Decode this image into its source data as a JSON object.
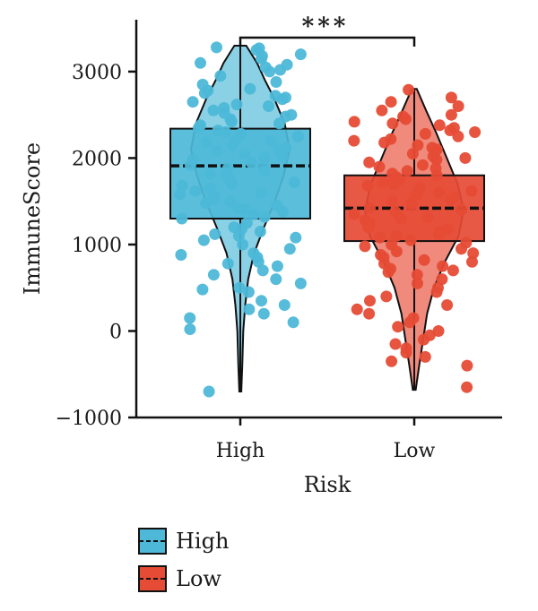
{
  "chart_data": {
    "type": "violin-box-jitter",
    "xlabel": "Risk",
    "ylabel": "ImmuneScore",
    "ylim": [
      -1000,
      3600
    ],
    "yticks": [
      -1000,
      0,
      1000,
      2000,
      3000
    ],
    "yticks_text": [
      "−1000",
      "0",
      "1000",
      "2000",
      "3000"
    ],
    "categories": [
      "High",
      "Low"
    ],
    "significance": "***",
    "legend": {
      "placement": "bottom-left",
      "entries": [
        "High",
        "Low"
      ]
    },
    "colors": {
      "High": "#4DB8D8",
      "Low": "#E64B35"
    },
    "groups": [
      {
        "name": "High",
        "box": {
          "q1": 1300,
          "median": 1910,
          "q3": 2340,
          "whisker_low": -700,
          "whisker_high": 3300
        },
        "violin": {
          "y": [
            -700,
            -400,
            0,
            300,
            600,
            900,
            1200,
            1500,
            1800,
            2100,
            2400,
            2700,
            2900,
            3100,
            3300
          ],
          "density": [
            0.02,
            0.04,
            0.06,
            0.1,
            0.16,
            0.28,
            0.48,
            0.7,
            0.88,
            1.0,
            0.9,
            0.68,
            0.5,
            0.34,
            0.12
          ]
        },
        "points": [
          3270,
          3280,
          3250,
          3200,
          3180,
          3150,
          3100,
          3080,
          3050,
          3020,
          3000,
          2950,
          2880,
          2850,
          2800,
          2780,
          2750,
          2720,
          2700,
          2680,
          2650,
          2620,
          2600,
          2580,
          2550,
          2520,
          2500,
          2480,
          2450,
          2420,
          2400,
          2380,
          2350,
          2320,
          2300,
          2280,
          2250,
          2220,
          2200,
          2180,
          2150,
          2120,
          2100,
          2080,
          2050,
          2020,
          2000,
          1980,
          1950,
          1920,
          1900,
          1880,
          1850,
          1820,
          1800,
          1780,
          1750,
          1720,
          1700,
          1680,
          1650,
          1620,
          1600,
          1580,
          1550,
          1520,
          1500,
          1480,
          1450,
          1420,
          1400,
          1380,
          1350,
          1320,
          1300,
          1250,
          1200,
          1180,
          1150,
          1120,
          1100,
          1080,
          1050,
          1000,
          950,
          900,
          880,
          850,
          800,
          780,
          750,
          700,
          650,
          600,
          550,
          500,
          480,
          450,
          350,
          300,
          250,
          200,
          150,
          100,
          20,
          -700
        ]
      },
      {
        "name": "Low",
        "box": {
          "q1": 1040,
          "median": 1420,
          "q3": 1800,
          "whisker_low": -680,
          "whisker_high": 2800
        },
        "violin": {
          "y": [
            -680,
            -400,
            -100,
            200,
            500,
            800,
            1100,
            1400,
            1700,
            2000,
            2300,
            2550,
            2800
          ],
          "density": [
            0.03,
            0.1,
            0.18,
            0.26,
            0.4,
            0.62,
            0.9,
            1.0,
            0.88,
            0.66,
            0.44,
            0.24,
            0.05
          ]
        },
        "points": [
          2790,
          2700,
          2650,
          2600,
          2550,
          2500,
          2480,
          2450,
          2420,
          2400,
          2380,
          2350,
          2320,
          2300,
          2280,
          2250,
          2220,
          2200,
          2180,
          2150,
          2120,
          2100,
          2080,
          2050,
          2020,
          2000,
          1980,
          1950,
          1920,
          1900,
          1880,
          1850,
          1820,
          1800,
          1780,
          1750,
          1720,
          1700,
          1680,
          1650,
          1620,
          1600,
          1580,
          1550,
          1520,
          1500,
          1480,
          1450,
          1420,
          1400,
          1380,
          1350,
          1320,
          1300,
          1280,
          1250,
          1220,
          1200,
          1180,
          1150,
          1120,
          1100,
          1080,
          1050,
          1020,
          1000,
          980,
          950,
          920,
          900,
          880,
          850,
          820,
          800,
          780,
          750,
          720,
          700,
          680,
          650,
          600,
          550,
          500,
          450,
          400,
          350,
          300,
          250,
          200,
          150,
          100,
          50,
          0,
          -50,
          -100,
          -150,
          -200,
          -250,
          -300,
          -350,
          -400,
          -650
        ]
      }
    ]
  }
}
